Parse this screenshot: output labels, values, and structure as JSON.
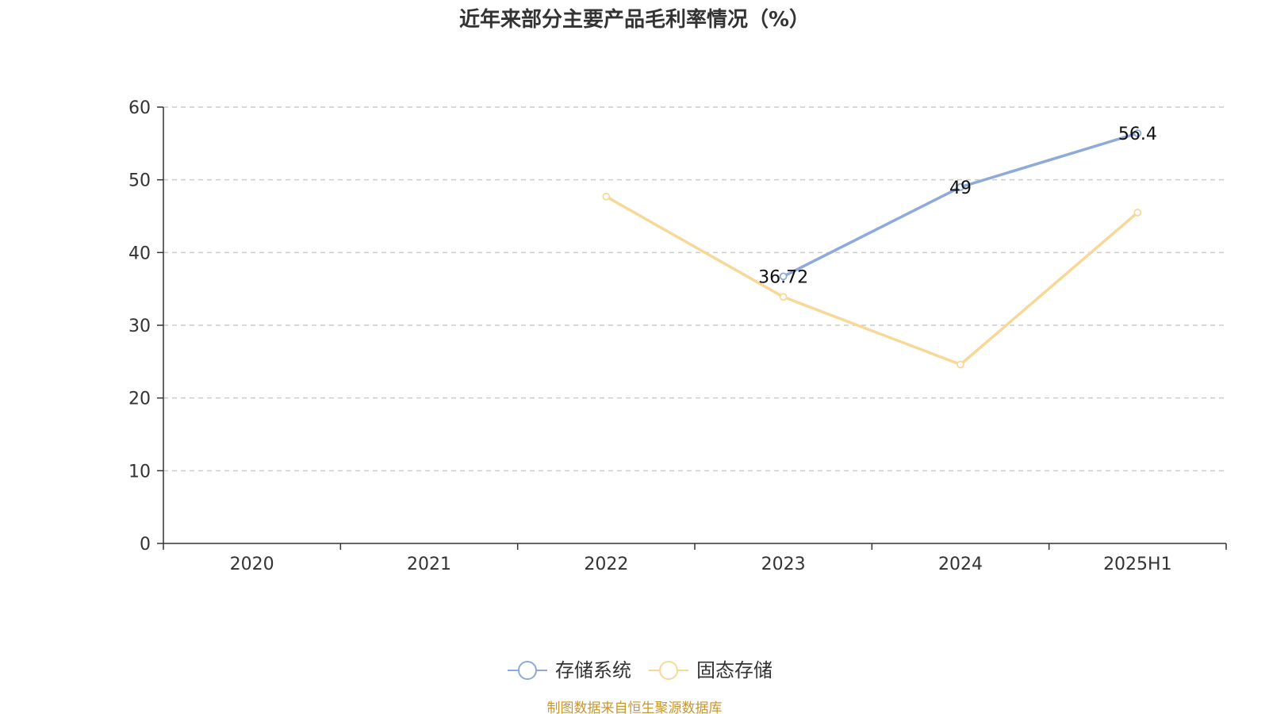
{
  "chart_data": {
    "type": "line",
    "title": "近年来部分主要产品毛利率情况（%）",
    "categories": [
      "2020",
      "2021",
      "2022",
      "2023",
      "2024",
      "2025H1"
    ],
    "ylim": [
      0,
      60
    ],
    "yticks": [
      "0",
      "10",
      "20",
      "30",
      "40",
      "50",
      "60"
    ],
    "grid": true,
    "legend_position": "bottom",
    "series": [
      {
        "name": "存储系统",
        "color": "#8eaad8",
        "values": [
          null,
          null,
          null,
          36.72,
          49,
          56.4
        ],
        "labels": [
          null,
          null,
          null,
          "36.72",
          "49",
          "56.4"
        ]
      },
      {
        "name": "固态存储",
        "color": "#f8d898",
        "values": [
          null,
          null,
          47.7,
          33.9,
          24.6,
          45.5
        ],
        "labels": [
          null,
          null,
          null,
          null,
          null,
          null
        ]
      }
    ]
  },
  "footer": {
    "source": "制图数据来自恒生聚源数据库"
  }
}
